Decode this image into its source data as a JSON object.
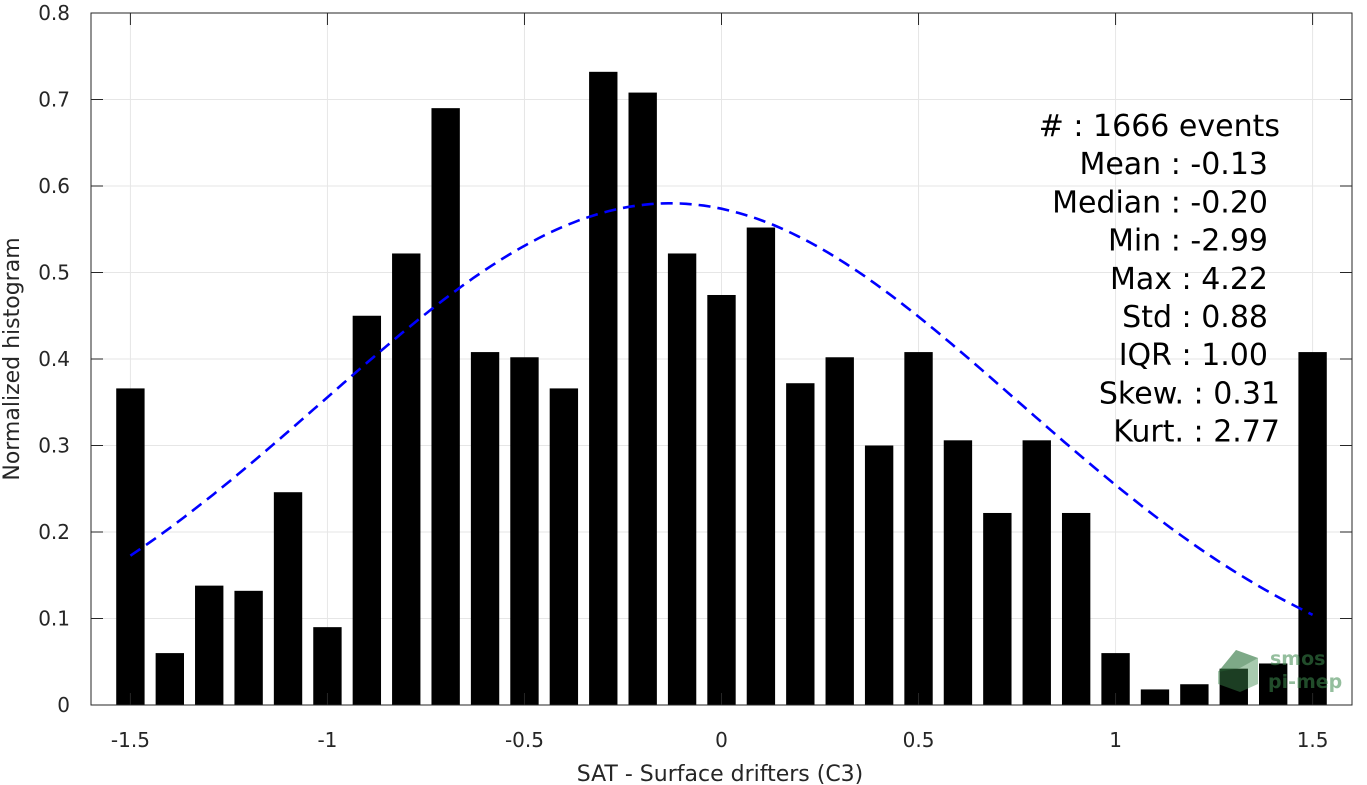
{
  "chart_data": {
    "type": "bar",
    "xlabel": "SAT - Surface drifters (C3)",
    "ylabel": "Normalized histogram",
    "xlim": [
      -1.6,
      1.6
    ],
    "ylim": [
      0,
      0.8
    ],
    "xticks": [
      "-1.5",
      "-1",
      "-0.5",
      "0",
      "0.5",
      "1",
      "1.5"
    ],
    "yticks": [
      "0",
      "0.1",
      "0.2",
      "0.3",
      "0.4",
      "0.5",
      "0.6",
      "0.7",
      "0.8"
    ],
    "grid": true,
    "bar_color": "#000000",
    "fit_color": "#0000ff",
    "x": [
      -1.5,
      -1.4,
      -1.3,
      -1.2,
      -1.1,
      -1.0,
      -0.9,
      -0.8,
      -0.7,
      -0.6,
      -0.5,
      -0.4,
      -0.3,
      -0.2,
      -0.1,
      0.0,
      0.1,
      0.2,
      0.3,
      0.4,
      0.5,
      0.6,
      0.7,
      0.8,
      0.9,
      1.0,
      1.1,
      1.2,
      1.3,
      1.4,
      1.5
    ],
    "values": [
      0.366,
      0.06,
      0.138,
      0.132,
      0.246,
      0.09,
      0.45,
      0.522,
      0.69,
      0.408,
      0.402,
      0.366,
      0.732,
      0.708,
      0.522,
      0.474,
      0.552,
      0.372,
      0.402,
      0.3,
      0.408,
      0.306,
      0.222,
      0.306,
      0.222,
      0.06,
      0.018,
      0.024,
      0.042,
      0.048,
      0.408
    ],
    "fit": {
      "mean": -0.13,
      "std": 0.88,
      "x_start": -1.5,
      "x_end": 1.5
    },
    "stats": [
      "#  : 1666 events",
      "Mean : -0.13",
      "Median : -0.20",
      "Min : -2.99",
      "Max : 4.22",
      "Std : 0.88",
      "IQR : 1.00",
      "Skew. : 0.31",
      "Kurt. : 2.77"
    ]
  },
  "watermark": {
    "line1": "smos",
    "line2": "pi-mep"
  }
}
